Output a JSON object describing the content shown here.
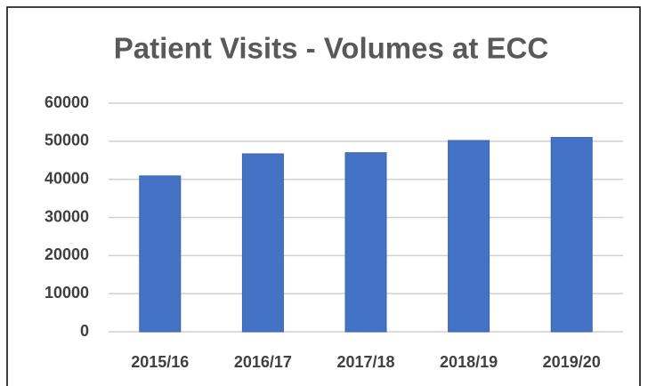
{
  "chart_data": {
    "type": "bar",
    "title": "Patient Visits - Volumes at ECC",
    "categories": [
      "2015/16",
      "2016/17",
      "2017/18",
      "2018/19",
      "2019/20"
    ],
    "values": [
      40900,
      46700,
      47000,
      50200,
      51000
    ],
    "color": "#4472c4",
    "ylim": [
      0,
      60000
    ],
    "yticks": [
      0,
      10000,
      20000,
      30000,
      40000,
      50000,
      60000
    ],
    "grid": true
  }
}
